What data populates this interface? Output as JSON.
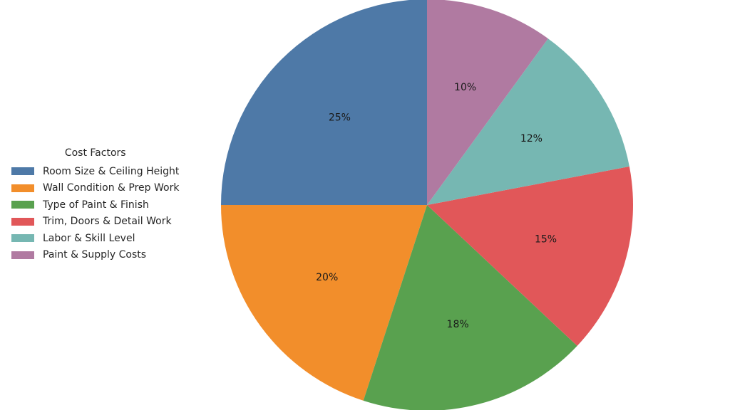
{
  "chart_data": {
    "type": "pie",
    "legend_title": "Cost Factors",
    "legend_position": "left",
    "start_angle_deg": 90,
    "direction": "counterclockwise",
    "categories": [
      "Room Size & Ceiling Height",
      "Wall Condition & Prep Work",
      "Type of Paint & Finish",
      "Trim, Doors & Detail Work",
      "Labor & Skill Level",
      "Paint & Supply Costs"
    ],
    "values": [
      25,
      20,
      18,
      15,
      12,
      10
    ],
    "labels": [
      "25%",
      "20%",
      "18%",
      "15%",
      "12%",
      "10%"
    ],
    "colors": [
      "#4e79a7",
      "#f28e2b",
      "#59a14f",
      "#e15759",
      "#76b7b2",
      "#b07aa1"
    ]
  }
}
